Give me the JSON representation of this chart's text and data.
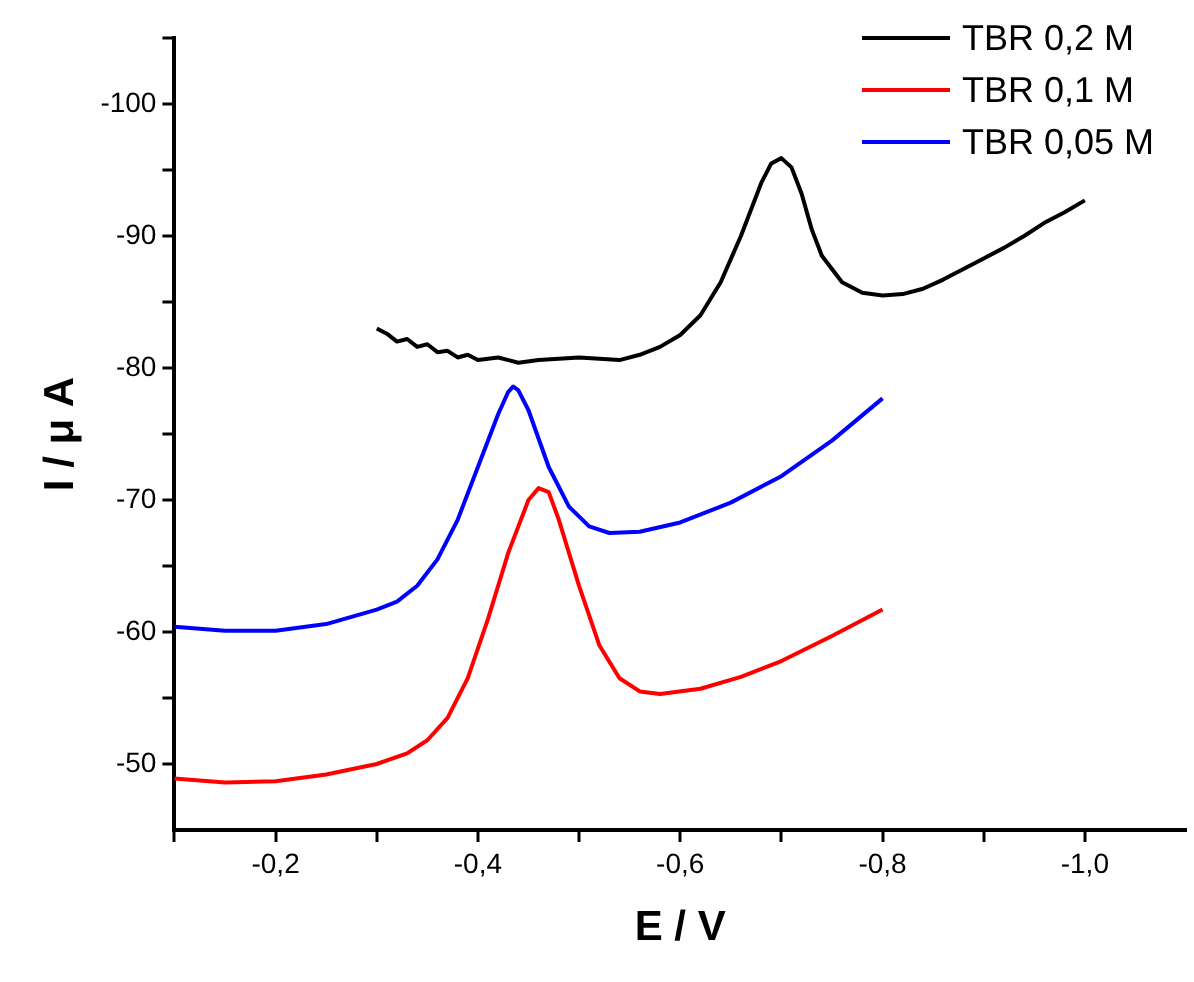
{
  "chart_data": {
    "type": "line",
    "xlabel": "E / V",
    "ylabel": "I / μ A",
    "xlim": [
      -0.1,
      -1.1
    ],
    "ylim": [
      -45,
      -105
    ],
    "xticks": [
      {
        "value": -0.1,
        "label": null
      },
      {
        "value": -0.2,
        "label": "-0,2"
      },
      {
        "value": -0.3,
        "label": null
      },
      {
        "value": -0.4,
        "label": "-0,4"
      },
      {
        "value": -0.5,
        "label": null
      },
      {
        "value": -0.6,
        "label": "-0,6"
      },
      {
        "value": -0.7,
        "label": null
      },
      {
        "value": -0.8,
        "label": "-0,8"
      },
      {
        "value": -0.9,
        "label": null
      },
      {
        "value": -1.0,
        "label": "-1,0"
      }
    ],
    "yticks": [
      -50,
      {
        "value": -55,
        "label": null
      },
      -60,
      {
        "value": -65,
        "label": null
      },
      -70,
      {
        "value": -75,
        "label": null
      },
      -80,
      {
        "value": -85,
        "label": null
      },
      -90,
      {
        "value": -95,
        "label": null
      },
      -100,
      {
        "value": -105,
        "label": null
      }
    ],
    "grid": false,
    "legend": "top right",
    "marker": "none",
    "line_style": "solid",
    "series": [
      {
        "name": "TBR 0,2 M",
        "color": "#000000",
        "x": [
          -0.3,
          -0.31,
          -0.32,
          -0.33,
          -0.34,
          -0.35,
          -0.36,
          -0.37,
          -0.38,
          -0.39,
          -0.4,
          -0.42,
          -0.44,
          -0.46,
          -0.48,
          -0.5,
          -0.52,
          -0.54,
          -0.56,
          -0.58,
          -0.6,
          -0.62,
          -0.64,
          -0.66,
          -0.68,
          -0.69,
          -0.7,
          -0.71,
          -0.72,
          -0.73,
          -0.74,
          -0.76,
          -0.78,
          -0.8,
          -0.82,
          -0.84,
          -0.86,
          -0.88,
          -0.9,
          -0.92,
          -0.94,
          -0.96,
          -0.98,
          -1.0
        ],
        "values": [
          -83.0,
          -82.6,
          -82.0,
          -82.2,
          -81.6,
          -81.8,
          -81.2,
          -81.3,
          -80.8,
          -81.0,
          -80.6,
          -80.8,
          -80.4,
          -80.6,
          -80.7,
          -80.8,
          -80.7,
          -80.6,
          -81.0,
          -81.6,
          -82.5,
          -84.0,
          -86.5,
          -90.0,
          -94.0,
          -95.5,
          -95.9,
          -95.2,
          -93.2,
          -90.5,
          -88.5,
          -86.5,
          -85.7,
          -85.5,
          -85.6,
          -86.0,
          -86.7,
          -87.5,
          -88.3,
          -89.1,
          -90.0,
          -91.0,
          -91.8,
          -92.7
        ]
      },
      {
        "name": "TBR 0,1 M",
        "color": "#ff0000",
        "x": [
          -0.1,
          -0.15,
          -0.2,
          -0.25,
          -0.3,
          -0.33,
          -0.35,
          -0.37,
          -0.39,
          -0.41,
          -0.43,
          -0.45,
          -0.46,
          -0.47,
          -0.48,
          -0.5,
          -0.52,
          -0.54,
          -0.56,
          -0.58,
          -0.62,
          -0.66,
          -0.7,
          -0.75,
          -0.8
        ],
        "values": [
          -48.9,
          -48.6,
          -48.7,
          -49.2,
          -50.0,
          -50.8,
          -51.8,
          -53.5,
          -56.5,
          -61.0,
          -66.0,
          -70.0,
          -70.9,
          -70.6,
          -68.5,
          -63.5,
          -59.0,
          -56.5,
          -55.5,
          -55.3,
          -55.7,
          -56.6,
          -57.8,
          -59.7,
          -61.7
        ]
      },
      {
        "name": "TBR 0,05 M",
        "color": "#0000ff",
        "x": [
          -0.1,
          -0.15,
          -0.2,
          -0.25,
          -0.3,
          -0.32,
          -0.34,
          -0.36,
          -0.38,
          -0.4,
          -0.42,
          -0.43,
          -0.435,
          -0.44,
          -0.45,
          -0.47,
          -0.49,
          -0.51,
          -0.53,
          -0.56,
          -0.6,
          -0.65,
          -0.7,
          -0.75,
          -0.8
        ],
        "values": [
          -60.4,
          -60.1,
          -60.1,
          -60.6,
          -61.7,
          -62.3,
          -63.5,
          -65.5,
          -68.5,
          -72.5,
          -76.5,
          -78.2,
          -78.6,
          -78.3,
          -76.8,
          -72.5,
          -69.5,
          -68.0,
          -67.5,
          -67.6,
          -68.3,
          -69.8,
          -71.8,
          -74.5,
          -77.7
        ]
      }
    ]
  }
}
